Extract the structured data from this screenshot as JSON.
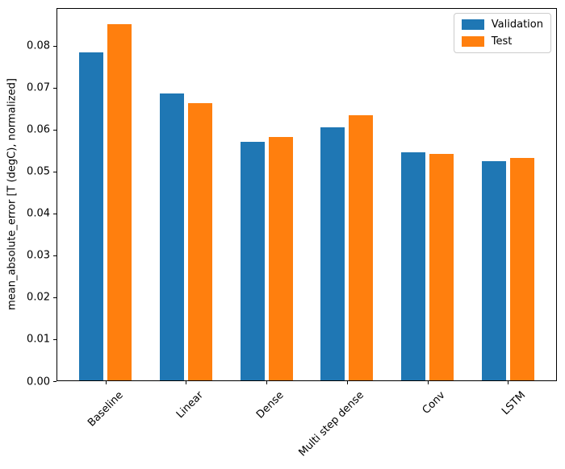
{
  "chart_data": {
    "type": "bar",
    "title": "",
    "xlabel": "",
    "ylabel": "mean_absolute_error [T (degC), normalized]",
    "categories": [
      "Baseline",
      "Linear",
      "Dense",
      "Multi step dense",
      "Conv",
      "LSTM"
    ],
    "series": [
      {
        "name": "Validation",
        "color": "#1f77b4",
        "values": [
          0.0785,
          0.0686,
          0.0571,
          0.0606,
          0.0545,
          0.0524
        ]
      },
      {
        "name": "Test",
        "color": "#ff7f0e",
        "values": [
          0.0852,
          0.0663,
          0.0583,
          0.0634,
          0.0542,
          0.0533
        ]
      }
    ],
    "ylim": [
      0,
      0.089
    ],
    "xlim": [
      -0.61,
      5.61
    ],
    "yticks": [
      0.0,
      0.01,
      0.02,
      0.03,
      0.04,
      0.05,
      0.06,
      0.07,
      0.08
    ],
    "ytick_labels": [
      "0.00",
      "0.01",
      "0.02",
      "0.03",
      "0.04",
      "0.05",
      "0.06",
      "0.07",
      "0.08"
    ],
    "xtick_rotation_deg": 45,
    "bar_width": 0.3,
    "bar_offsets": [
      -0.175,
      0.175
    ],
    "grid": false,
    "legend": {
      "position": "upper right",
      "entries": [
        "Validation",
        "Test"
      ]
    }
  }
}
